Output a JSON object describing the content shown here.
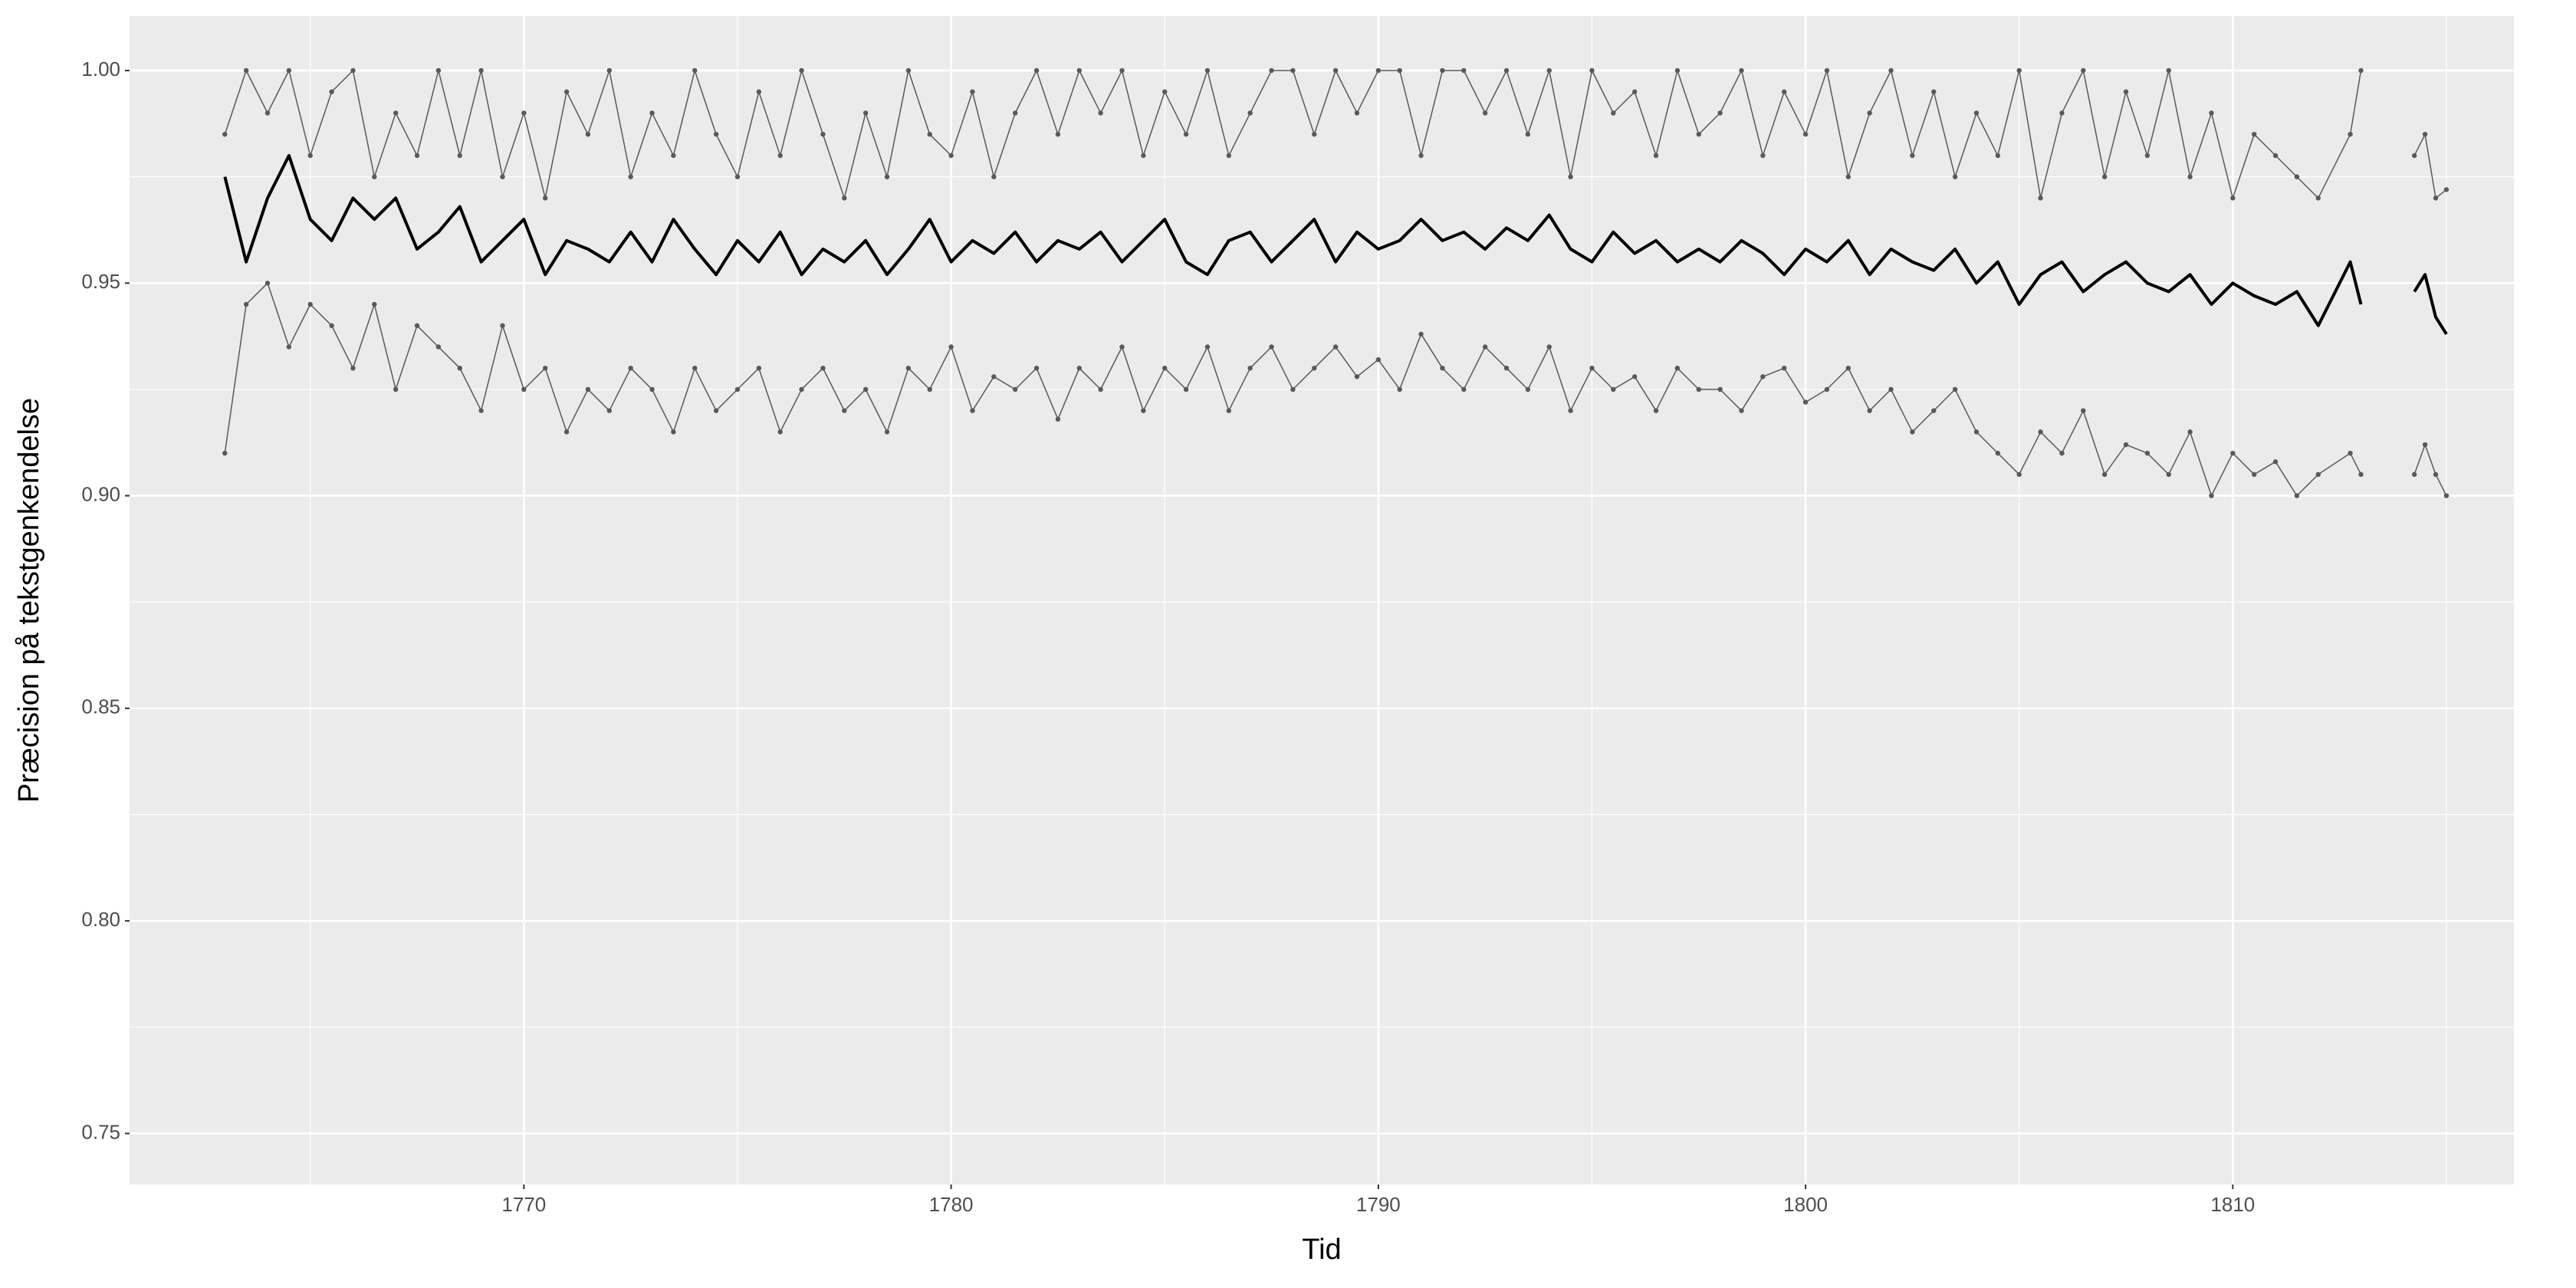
{
  "chart_data": {
    "type": "line",
    "xlabel": "Tid",
    "ylabel": "Præcision på tekstgenkendelse",
    "x": [
      1763,
      1763.5,
      1764,
      1764.5,
      1765,
      1765.5,
      1766,
      1766.5,
      1767,
      1767.5,
      1768,
      1768.5,
      1769,
      1769.5,
      1770,
      1770.5,
      1771,
      1771.5,
      1772,
      1772.5,
      1773,
      1773.5,
      1774,
      1774.5,
      1775,
      1775.5,
      1776,
      1776.5,
      1777,
      1777.5,
      1778,
      1778.5,
      1779,
      1779.5,
      1780,
      1780.5,
      1781,
      1781.5,
      1782,
      1782.5,
      1783,
      1783.5,
      1784,
      1784.5,
      1785,
      1785.5,
      1786,
      1786.5,
      1787,
      1787.5,
      1788,
      1788.5,
      1789,
      1789.5,
      1790,
      1790.5,
      1791,
      1791.5,
      1792,
      1792.5,
      1793,
      1793.5,
      1794,
      1794.5,
      1795,
      1795.5,
      1796,
      1796.5,
      1797,
      1797.5,
      1798,
      1798.5,
      1799,
      1799.5,
      1800,
      1800.5,
      1801,
      1801.5,
      1802,
      1802.5,
      1803,
      1803.5,
      1804,
      1804.5,
      1805,
      1805.5,
      1806,
      1806.5,
      1807,
      1807.5,
      1808,
      1808.5,
      1809,
      1809.5,
      1810,
      1810.5,
      1811,
      1811.5,
      1812,
      1812.75,
      1813,
      1813.5,
      1814.25,
      1814.5,
      1814.75,
      1815
    ],
    "series": [
      {
        "color": "#595959",
        "markers": true,
        "values": [
          0.985,
          1.0,
          0.99,
          1.0,
          0.98,
          0.995,
          1.0,
          0.975,
          0.99,
          0.98,
          1.0,
          0.98,
          1.0,
          0.975,
          0.99,
          0.97,
          0.995,
          0.985,
          1.0,
          0.975,
          0.99,
          0.98,
          1.0,
          0.985,
          0.975,
          0.995,
          0.98,
          1.0,
          0.985,
          0.97,
          0.99,
          0.975,
          1.0,
          0.985,
          0.98,
          0.995,
          0.975,
          0.99,
          1.0,
          0.985,
          1.0,
          0.99,
          1.0,
          0.98,
          0.995,
          0.985,
          1.0,
          0.98,
          0.99,
          1.0,
          1.0,
          0.985,
          1.0,
          0.99,
          1.0,
          1.0,
          0.98,
          1.0,
          1.0,
          0.99,
          1.0,
          0.985,
          1.0,
          0.975,
          1.0,
          0.99,
          0.995,
          0.98,
          1.0,
          0.985,
          0.99,
          1.0,
          0.98,
          0.995,
          0.985,
          1.0,
          0.975,
          0.99,
          1.0,
          0.98,
          0.995,
          0.975,
          0.99,
          0.98,
          1.0,
          0.97,
          0.99,
          1.0,
          0.975,
          0.995,
          0.98,
          1.0,
          0.975,
          0.99,
          0.97,
          0.985,
          0.98,
          0.975,
          0.97,
          0.985,
          1.0,
          null,
          0.98,
          0.985,
          0.97,
          0.972
        ]
      },
      {
        "color": "#000000",
        "markers": false,
        "values": [
          0.975,
          0.955,
          0.97,
          0.98,
          0.965,
          0.96,
          0.97,
          0.965,
          0.97,
          0.958,
          0.962,
          0.968,
          0.955,
          0.96,
          0.965,
          0.952,
          0.96,
          0.958,
          0.955,
          0.962,
          0.955,
          0.965,
          0.958,
          0.952,
          0.96,
          0.955,
          0.962,
          0.952,
          0.958,
          0.955,
          0.96,
          0.952,
          0.958,
          0.965,
          0.955,
          0.96,
          0.957,
          0.962,
          0.955,
          0.96,
          0.958,
          0.962,
          0.955,
          0.96,
          0.965,
          0.955,
          0.952,
          0.96,
          0.962,
          0.955,
          0.96,
          0.965,
          0.955,
          0.962,
          0.958,
          0.96,
          0.965,
          0.96,
          0.962,
          0.958,
          0.963,
          0.96,
          0.966,
          0.958,
          0.955,
          0.962,
          0.957,
          0.96,
          0.955,
          0.958,
          0.955,
          0.96,
          0.957,
          0.952,
          0.958,
          0.955,
          0.96,
          0.952,
          0.958,
          0.955,
          0.953,
          0.958,
          0.95,
          0.955,
          0.945,
          0.952,
          0.955,
          0.948,
          0.952,
          0.955,
          0.95,
          0.948,
          0.952,
          0.945,
          0.95,
          0.947,
          0.945,
          0.948,
          0.94,
          0.955,
          0.945,
          null,
          0.948,
          0.952,
          0.942,
          0.938
        ]
      },
      {
        "color": "#595959",
        "markers": true,
        "values": [
          0.91,
          0.945,
          0.95,
          0.935,
          0.945,
          0.94,
          0.93,
          0.945,
          0.925,
          0.94,
          0.935,
          0.93,
          0.92,
          0.94,
          0.925,
          0.93,
          0.915,
          0.925,
          0.92,
          0.93,
          0.925,
          0.915,
          0.93,
          0.92,
          0.925,
          0.93,
          0.915,
          0.925,
          0.93,
          0.92,
          0.925,
          0.915,
          0.93,
          0.925,
          0.935,
          0.92,
          0.928,
          0.925,
          0.93,
          0.918,
          0.93,
          0.925,
          0.935,
          0.92,
          0.93,
          0.925,
          0.935,
          0.92,
          0.93,
          0.935,
          0.925,
          0.93,
          0.935,
          0.928,
          0.932,
          0.925,
          0.938,
          0.93,
          0.925,
          0.935,
          0.93,
          0.925,
          0.935,
          0.92,
          0.93,
          0.925,
          0.928,
          0.92,
          0.93,
          0.925,
          0.925,
          0.92,
          0.928,
          0.93,
          0.922,
          0.925,
          0.93,
          0.92,
          0.925,
          0.915,
          0.92,
          0.925,
          0.915,
          0.91,
          0.905,
          0.915,
          0.91,
          0.92,
          0.905,
          0.912,
          0.91,
          0.905,
          0.915,
          0.9,
          0.91,
          0.905,
          0.908,
          0.9,
          0.905,
          0.91,
          0.905,
          null,
          0.905,
          0.912,
          0.905,
          0.9
        ]
      }
    ],
    "xlim": [
      1760.77,
      1816.58
    ],
    "xticks": [
      1770,
      1780,
      1790,
      1800,
      1810
    ],
    "ylim": [
      0.738,
      1.0128
    ],
    "yticks": [
      0.75,
      {
        "value": 0.8,
        "label": "0.80"
      },
      0.85,
      {
        "value": 0.9,
        "label": "0.90"
      },
      0.95,
      {
        "value": 1.0,
        "label": "1.00"
      }
    ],
    "grid": true,
    "minor_grid": true
  }
}
